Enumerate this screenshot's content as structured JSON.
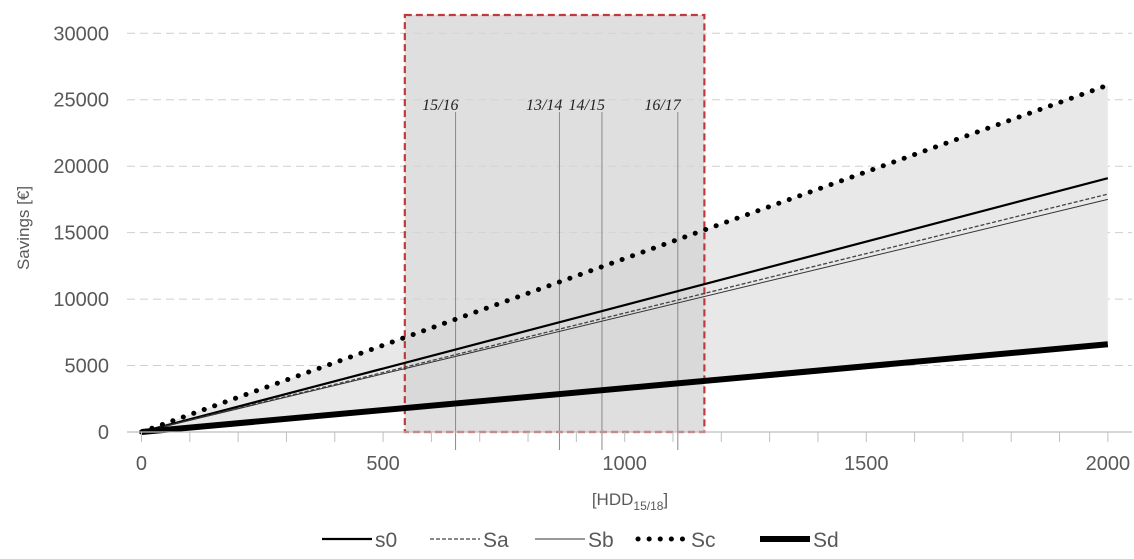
{
  "chart_data": {
    "type": "line",
    "title": "",
    "xlabel": "[HDD",
    "xlabel_sub": "15/18",
    "xlabel_close": "]",
    "ylabel": "Savings [€]",
    "xlim": [
      -30,
      2050
    ],
    "ylim": [
      0,
      31000
    ],
    "x_ticks": [
      0,
      500,
      1000,
      1500,
      2000
    ],
    "y_ticks": [
      0,
      5000,
      10000,
      15000,
      20000,
      25000,
      30000
    ],
    "grid": "horizontal dashed",
    "legend_position": "bottom",
    "series": [
      {
        "name": "s0",
        "style": "solid-thin",
        "x": [
          0,
          2000
        ],
        "y": [
          0,
          19100
        ]
      },
      {
        "name": "Sa",
        "style": "dashed",
        "x": [
          0,
          2000
        ],
        "y": [
          0,
          17900
        ]
      },
      {
        "name": "Sb",
        "style": "solid-hairline",
        "x": [
          0,
          2000
        ],
        "y": [
          0,
          17500
        ]
      },
      {
        "name": "Sc",
        "style": "dotted",
        "x": [
          0,
          2000
        ],
        "y": [
          0,
          26100
        ]
      },
      {
        "name": "Sd",
        "style": "solid-thick",
        "x": [
          0,
          2000
        ],
        "y": [
          0,
          6600
        ]
      }
    ],
    "shaded_band": {
      "between": [
        "Sd",
        "Sc"
      ],
      "color": "#e8e8e8"
    },
    "highlight_region": {
      "x": [
        545,
        1165
      ],
      "fill": "#d4d4d4",
      "border_color": "#c0393b"
    },
    "season_markers": [
      {
        "label": "15/16",
        "x": 650
      },
      {
        "label": "13/14",
        "x": 865
      },
      {
        "label": "14/15",
        "x": 953
      },
      {
        "label": "16/17",
        "x": 1110
      }
    ]
  }
}
